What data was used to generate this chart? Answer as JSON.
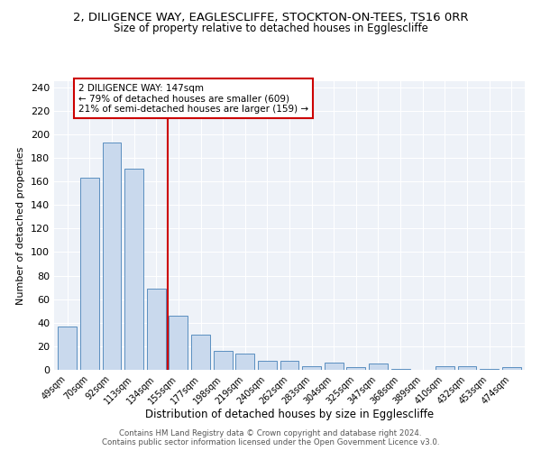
{
  "title": "2, DILIGENCE WAY, EAGLESCLIFFE, STOCKTON-ON-TEES, TS16 0RR",
  "subtitle": "Size of property relative to detached houses in Egglescliffe",
  "xlabel": "Distribution of detached houses by size in Egglescliffe",
  "ylabel": "Number of detached properties",
  "categories": [
    "49sqm",
    "70sqm",
    "92sqm",
    "113sqm",
    "134sqm",
    "155sqm",
    "177sqm",
    "198sqm",
    "219sqm",
    "240sqm",
    "262sqm",
    "283sqm",
    "304sqm",
    "325sqm",
    "347sqm",
    "368sqm",
    "389sqm",
    "410sqm",
    "432sqm",
    "453sqm",
    "474sqm"
  ],
  "values": [
    37,
    163,
    193,
    171,
    69,
    46,
    30,
    16,
    14,
    8,
    8,
    3,
    6,
    2,
    5,
    1,
    0,
    3,
    3,
    1,
    2
  ],
  "bar_color": "#c9d9ed",
  "bar_edge_color": "#5a8fc0",
  "property_line_x": 4.5,
  "property_label": "2 DILIGENCE WAY: 147sqm",
  "annotation_line1": "← 79% of detached houses are smaller (609)",
  "annotation_line2": "21% of semi-detached houses are larger (159) →",
  "annotation_box_color": "#cc0000",
  "ylim": [
    0,
    245
  ],
  "yticks": [
    0,
    20,
    40,
    60,
    80,
    100,
    120,
    140,
    160,
    180,
    200,
    220,
    240
  ],
  "footer_line1": "Contains HM Land Registry data © Crown copyright and database right 2024.",
  "footer_line2": "Contains public sector information licensed under the Open Government Licence v3.0.",
  "bg_color": "#eef2f8",
  "title_fontsize": 9.5,
  "subtitle_fontsize": 8.5
}
